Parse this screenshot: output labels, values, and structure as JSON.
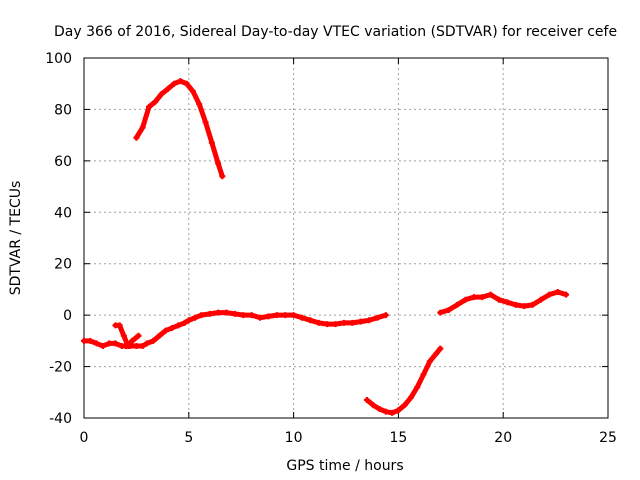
{
  "chart_data": {
    "type": "line",
    "title": "Day 366 of 2016, Sidereal Day-to-day VTEC variation (SDTVAR) for receiver cefe",
    "xlabel": "GPS time / hours",
    "ylabel": "SDTVAR / TECUs",
    "xlim": [
      0,
      25
    ],
    "ylim": [
      -40,
      100
    ],
    "xticks": [
      0,
      5,
      10,
      15,
      20,
      25
    ],
    "yticks": [
      -40,
      -20,
      0,
      20,
      40,
      60,
      80,
      100
    ],
    "grid": true,
    "series_color": "#ff0000",
    "series": [
      {
        "name": "segment-1",
        "x": [
          0,
          0.3,
          0.6,
          0.9,
          1.2,
          1.5,
          1.8,
          2.0,
          2.2,
          2.5,
          2.8,
          3.0,
          3.3,
          3.6,
          3.9,
          4.2,
          4.5,
          4.8,
          5.0,
          5.3,
          5.6,
          6.0,
          6.4,
          6.8,
          7.2,
          7.6,
          8.0,
          8.4,
          8.8,
          9.2,
          9.6,
          10.0,
          10.4,
          10.8,
          11.2,
          11.6,
          12.0,
          12.4,
          12.8,
          13.2,
          13.6,
          14.0,
          14.4
        ],
        "y": [
          -10,
          -10,
          -11,
          -12,
          -11,
          -11,
          -12,
          -12,
          -12,
          -12,
          -12,
          -11,
          -10,
          -8,
          -6,
          -5,
          -4,
          -3,
          -2,
          -1,
          0,
          0.5,
          1,
          1,
          0.5,
          0,
          0,
          -1,
          -0.5,
          0,
          0,
          0,
          -1,
          -2,
          -3,
          -3.5,
          -3.5,
          -3,
          -3,
          -2.5,
          -2,
          -1,
          0
        ]
      },
      {
        "name": "segment-1-spike",
        "x": [
          1.5,
          1.7,
          1.9,
          2.1,
          2.3,
          2.6
        ],
        "y": [
          -4,
          -4,
          -8,
          -12,
          -10,
          -8
        ]
      },
      {
        "name": "segment-2",
        "x": [
          2.5,
          2.8,
          3.1,
          3.4,
          3.7,
          4.0,
          4.3,
          4.6,
          4.9,
          5.2,
          5.5,
          5.8,
          6.1,
          6.4,
          6.6
        ],
        "y": [
          69,
          73,
          81,
          83,
          86,
          88,
          90,
          91,
          90,
          87,
          82,
          75,
          67,
          59,
          54
        ]
      },
      {
        "name": "segment-3",
        "x": [
          13.5,
          13.8,
          14.1,
          14.4,
          14.7,
          15.0,
          15.3,
          15.6,
          15.9,
          16.2,
          16.5,
          16.8,
          17.0
        ],
        "y": [
          -33,
          -35,
          -36.5,
          -37.5,
          -38,
          -37,
          -35,
          -32,
          -28,
          -23,
          -18,
          -15,
          -13
        ]
      },
      {
        "name": "segment-4",
        "x": [
          17.0,
          17.4,
          17.8,
          18.2,
          18.6,
          19.0,
          19.4,
          19.8,
          20.2,
          20.6,
          21.0,
          21.4,
          21.8,
          22.2,
          22.6,
          23.0
        ],
        "y": [
          1,
          2,
          4,
          6,
          7,
          7,
          8,
          6,
          5,
          4,
          3.5,
          4,
          6,
          8,
          9,
          8
        ]
      }
    ]
  }
}
